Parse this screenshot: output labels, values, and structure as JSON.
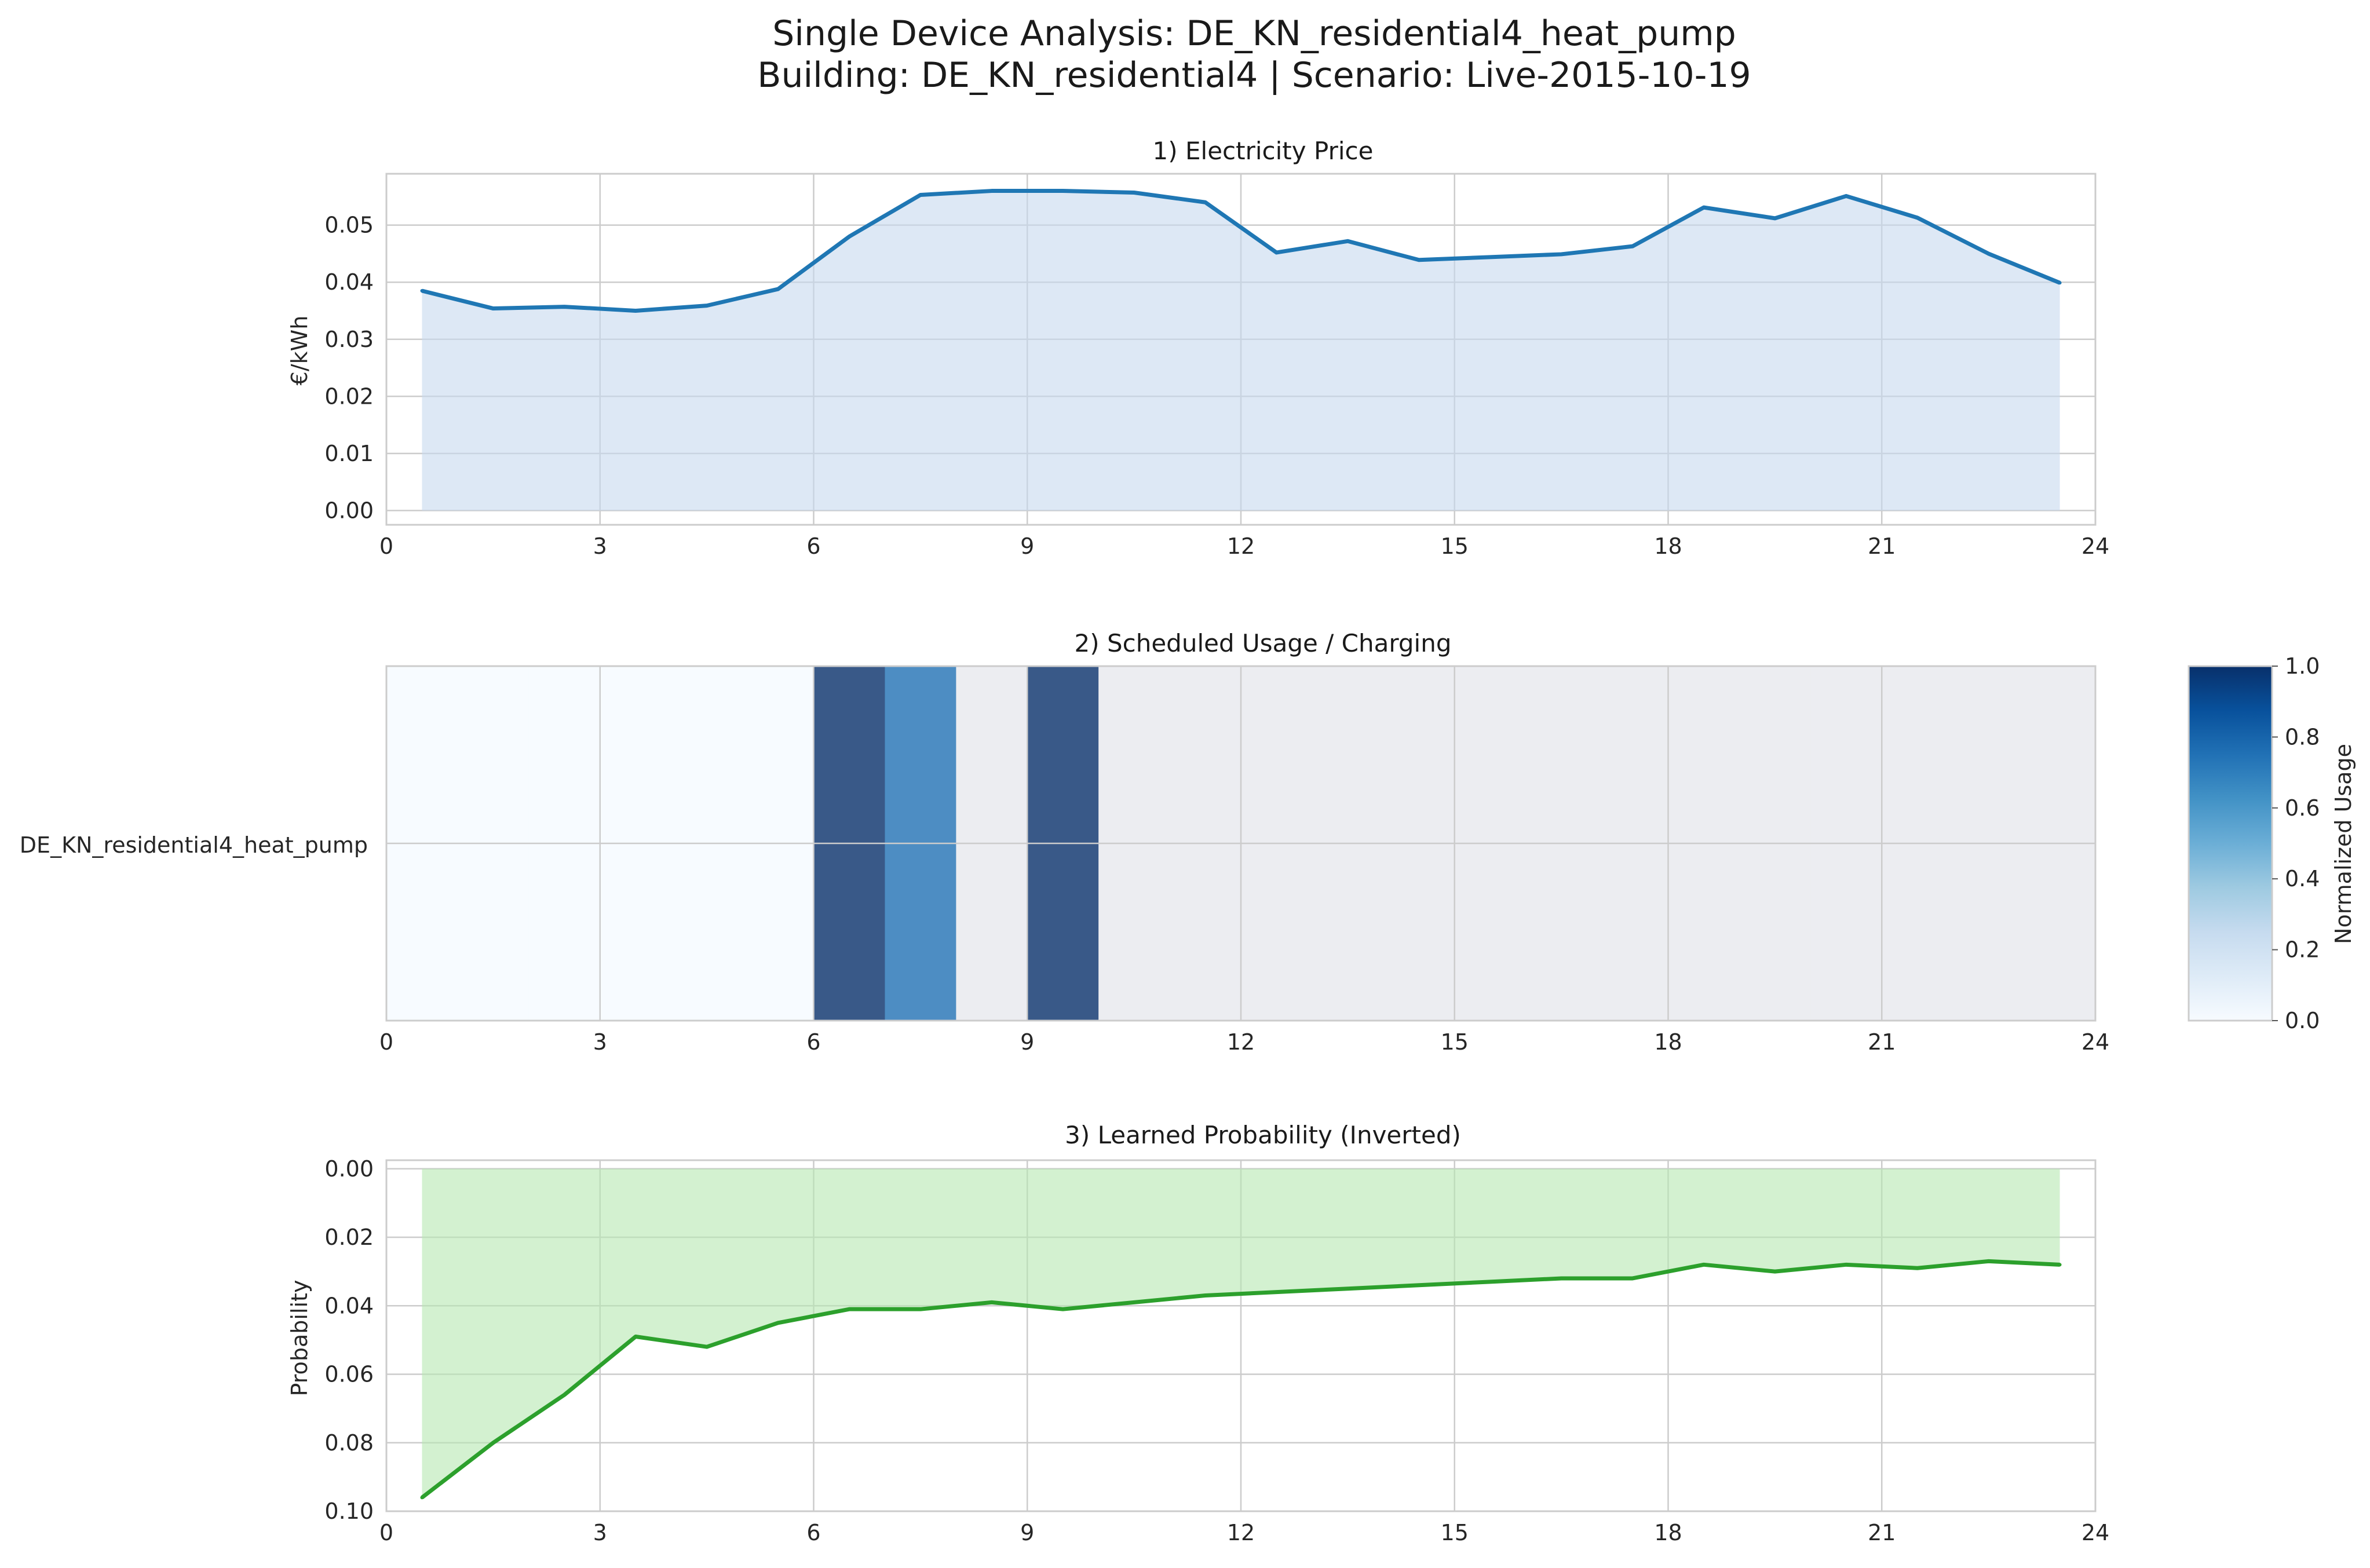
{
  "figure": {
    "title_line1": "Single Device Analysis: DE_KN_residential4_heat_pump",
    "title_line2": "Building: DE_KN_residential4 | Scenario: Live-2015-10-19"
  },
  "chart_data": [
    {
      "type": "area",
      "title": "1) Electricity Price",
      "xlabel": "",
      "ylabel": "€/kWh",
      "xlim": [
        0,
        24
      ],
      "ylim": [
        -0.0025,
        0.059
      ],
      "xticks": [
        0,
        3,
        6,
        9,
        12,
        15,
        18,
        21,
        24
      ],
      "yticks": [
        0.0,
        0.01,
        0.02,
        0.03,
        0.04,
        0.05
      ],
      "ytick_decimals": 2,
      "grid": true,
      "color": "#1f77b4",
      "fill_color": "#c6d9ef",
      "x": [
        0.5,
        1.5,
        2.5,
        3.5,
        4.5,
        5.5,
        6.5,
        7.5,
        8.5,
        9.5,
        10.5,
        11.5,
        12.5,
        13.5,
        14.5,
        15.5,
        16.5,
        17.5,
        18.5,
        19.5,
        20.5,
        21.5,
        22.5,
        23.5
      ],
      "values": [
        0.0385,
        0.0354,
        0.0357,
        0.035,
        0.0359,
        0.0388,
        0.048,
        0.0553,
        0.056,
        0.056,
        0.0557,
        0.054,
        0.0452,
        0.0472,
        0.0439,
        0.0444,
        0.0449,
        0.0463,
        0.0531,
        0.0512,
        0.0551,
        0.0513,
        0.045,
        0.0399
      ]
    },
    {
      "type": "heatmap",
      "title": "2) Scheduled Usage / Charging",
      "rows": [
        "DE_KN_residential4_heat_pump"
      ],
      "xlim": [
        0,
        24
      ],
      "xticks": [
        0,
        3,
        6,
        9,
        12,
        15,
        18,
        21,
        24
      ],
      "grid": true,
      "colormap": "Blues",
      "colorbar_label": "Normalized Usage",
      "colorbar_ticks": [
        0.0,
        0.2,
        0.4,
        0.6,
        0.8,
        1.0
      ],
      "hours": [
        0,
        1,
        2,
        3,
        4,
        5,
        6,
        7,
        8,
        9,
        10,
        11,
        12,
        13,
        14,
        15,
        16,
        17,
        18,
        19,
        20,
        21,
        22,
        23
      ],
      "values": [
        0,
        0,
        0,
        0,
        0,
        0,
        1.0,
        0.75,
        0,
        1.0,
        0,
        0,
        0,
        0,
        0,
        0,
        0,
        0,
        0,
        0,
        0,
        0,
        0,
        0
      ]
    },
    {
      "type": "area",
      "title": "3) Learned Probability (Inverted)",
      "xlabel": "",
      "ylabel": "Probability",
      "xlim": [
        0,
        24
      ],
      "ylim": [
        0.1,
        -0.0025
      ],
      "inverted_y": true,
      "xticks": [
        0,
        3,
        6,
        9,
        12,
        15,
        18,
        21,
        24
      ],
      "yticks": [
        0.0,
        0.02,
        0.04,
        0.06,
        0.08,
        0.1
      ],
      "ytick_decimals": 2,
      "grid": true,
      "color": "#2ca02c",
      "fill_color": "#b5e8b0",
      "x": [
        0.5,
        1.5,
        2.5,
        3.5,
        4.5,
        5.5,
        6.5,
        7.5,
        8.5,
        9.5,
        10.5,
        11.5,
        12.5,
        13.5,
        14.5,
        15.5,
        16.5,
        17.5,
        18.5,
        19.5,
        20.5,
        21.5,
        22.5,
        23.5
      ],
      "values": [
        0.096,
        0.08,
        0.066,
        0.049,
        0.052,
        0.045,
        0.041,
        0.041,
        0.039,
        0.041,
        0.039,
        0.037,
        0.036,
        0.035,
        0.034,
        0.033,
        0.032,
        0.032,
        0.028,
        0.03,
        0.028,
        0.029,
        0.027,
        0.028
      ]
    }
  ]
}
